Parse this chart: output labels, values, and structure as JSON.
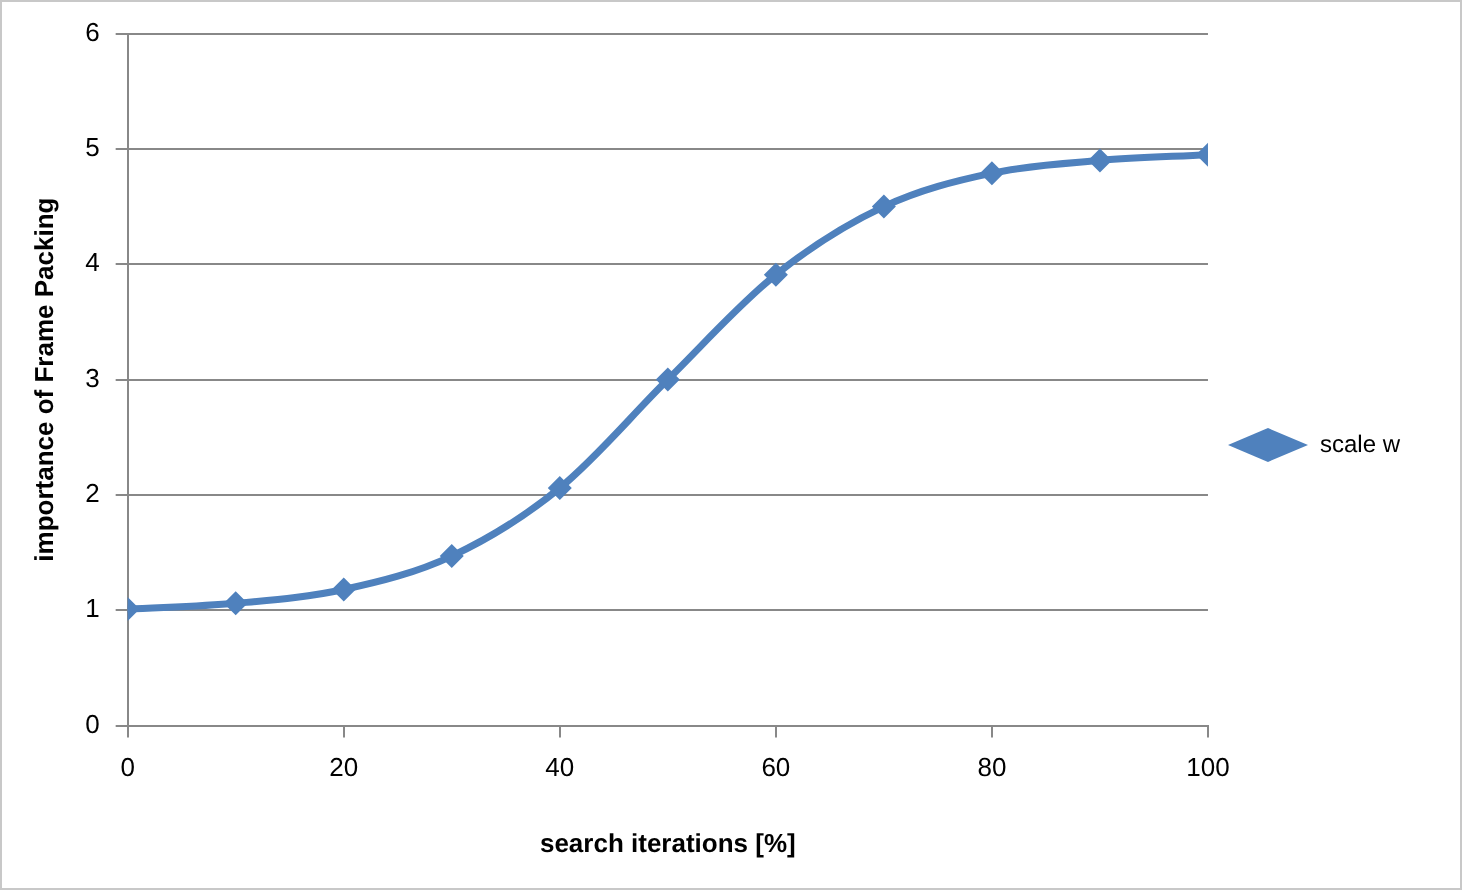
{
  "chart_data": {
    "type": "line",
    "xlabel": "search iterations [%]",
    "ylabel": "importance of Frame Packing",
    "x": [
      0,
      10,
      20,
      30,
      40,
      50,
      60,
      70,
      80,
      90,
      100
    ],
    "series": [
      {
        "name": "scale w",
        "color": "#4f81bd",
        "values": [
          1.01,
          1.06,
          1.18,
          1.47,
          2.06,
          3.0,
          3.91,
          4.5,
          4.79,
          4.9,
          4.95
        ]
      }
    ],
    "xlim": [
      0,
      100
    ],
    "xticks": [
      0,
      20,
      40,
      60,
      80,
      100
    ],
    "ylim": [
      0,
      6
    ],
    "yticks": [
      0,
      1,
      2,
      3,
      4,
      5,
      6
    ],
    "grid": "y",
    "legend": "right",
    "marker": "diamond",
    "line_style": "solid"
  }
}
